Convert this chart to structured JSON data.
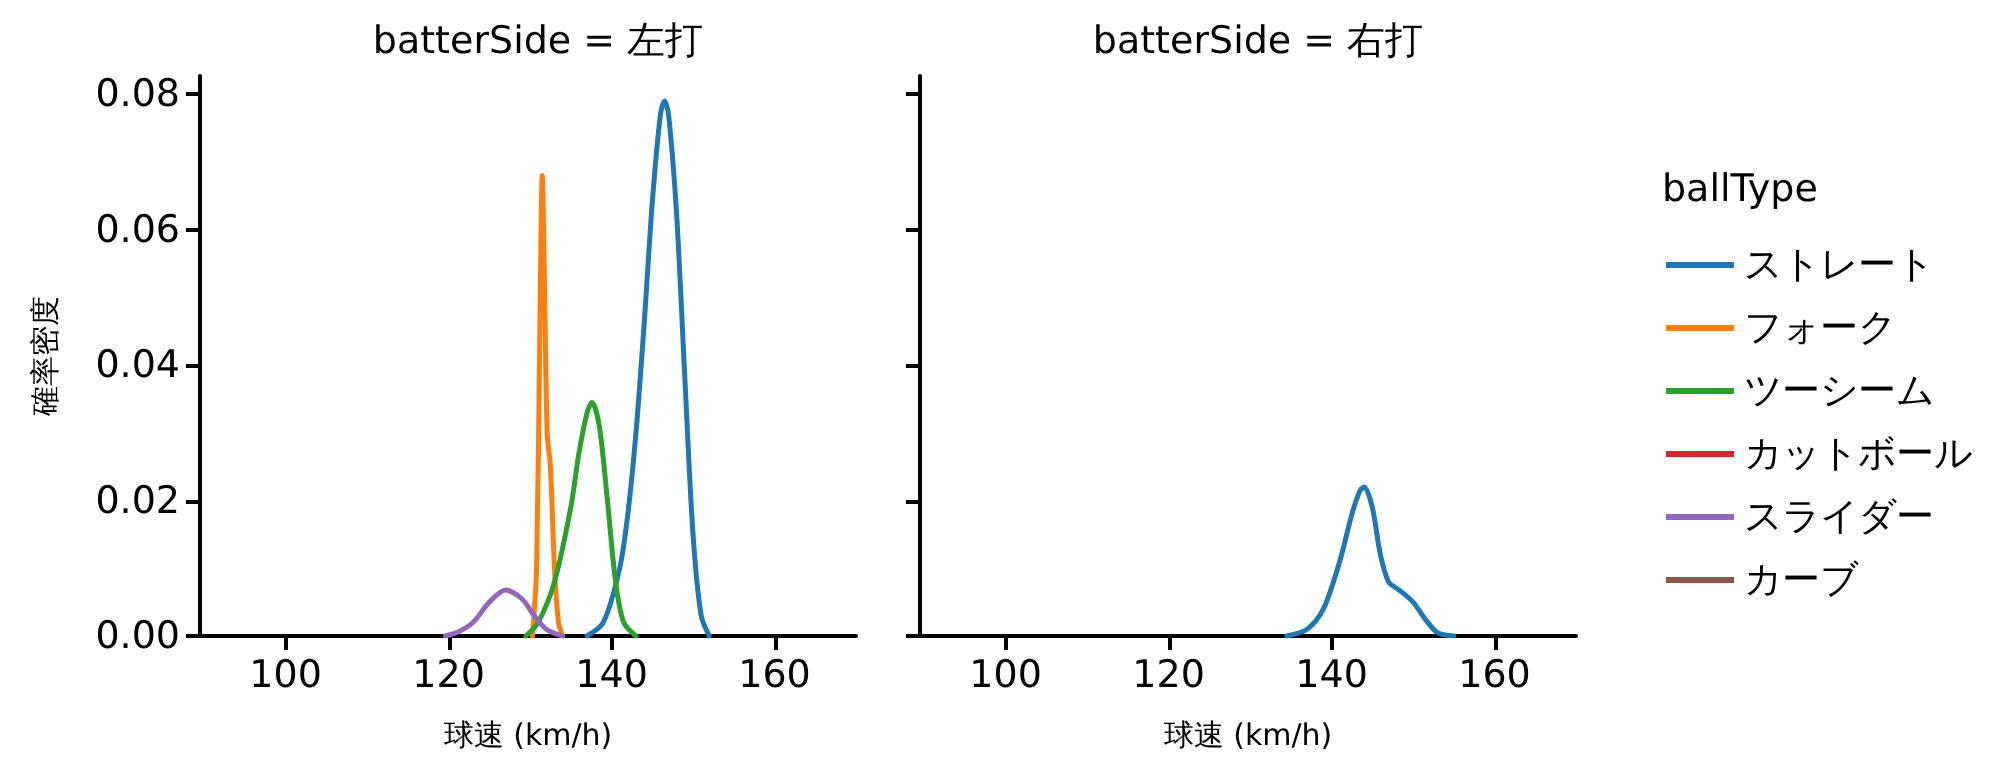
{
  "chart_data": [
    {
      "type": "line",
      "title": "batterSide = 左打",
      "xlabel": "球速 (km/h)",
      "ylabel": "確率密度",
      "xlim": [
        89.5,
        170
      ],
      "xticks": [
        100,
        120,
        140,
        160
      ],
      "ylim": [
        0,
        0.0827
      ],
      "yticks": [
        {
          "value": 0,
          "label": "0.00"
        },
        {
          "value": 0.02,
          "label": "0.02"
        },
        {
          "value": 0.04,
          "label": "0.04"
        },
        {
          "value": 0.06,
          "label": "0.06"
        },
        {
          "value": 0.08,
          "label": "0.08"
        }
      ],
      "grid": false,
      "legend": false,
      "marker": "none",
      "line_style": "solid",
      "series": [
        {
          "color": "#1f77b4",
          "x": [
            137,
            139,
            141,
            142,
            143,
            144,
            145,
            146,
            146.5,
            147,
            148,
            149,
            150,
            151,
            152
          ],
          "values": [
            0,
            0.002,
            0.01,
            0.018,
            0.03,
            0.046,
            0.064,
            0.077,
            0.079,
            0.077,
            0.062,
            0.038,
            0.015,
            0.003,
            0
          ]
        },
        {
          "color": "#ff7f0e",
          "x": [
            130.3,
            130.8,
            131.2,
            131.5,
            131.8,
            132.1,
            132.5,
            133,
            133.5,
            134
          ],
          "values": [
            0,
            0.01,
            0.045,
            0.068,
            0.05,
            0.03,
            0.025,
            0.01,
            0.002,
            0
          ]
        },
        {
          "color": "#2ca02c",
          "x": [
            129.5,
            131,
            133,
            135,
            136,
            137,
            137.6,
            138.5,
            139.5,
            140.5,
            141.5,
            143
          ],
          "values": [
            0,
            0.002,
            0.008,
            0.019,
            0.027,
            0.033,
            0.0345,
            0.031,
            0.02,
            0.008,
            0.002,
            0
          ]
        },
        {
          "color": "#9467bd",
          "x": [
            119.6,
            121,
            123,
            125,
            127,
            129,
            130.5,
            132,
            134
          ],
          "values": [
            0,
            0.0005,
            0.002,
            0.005,
            0.0068,
            0.0055,
            0.003,
            0.001,
            0
          ]
        }
      ]
    },
    {
      "type": "line",
      "title": "batterSide = 右打",
      "xlabel": "球速 (km/h)",
      "legend_title": "ballType",
      "xlim": [
        89.5,
        170
      ],
      "xticks": [
        100,
        120,
        140,
        160
      ],
      "ylim": [
        0,
        0.0827
      ],
      "yticks": [
        0,
        0.02,
        0.04,
        0.06,
        0.08
      ],
      "tick_labels": "x",
      "grid": false,
      "legend": "right",
      "marker": "none",
      "line_style": "solid",
      "series": [
        {
          "name": "ストレート",
          "color": "#1f77b4",
          "x": [
            134.5,
            137,
            139,
            141,
            142.5,
            143.5,
            144,
            145,
            146,
            147,
            148.3,
            150,
            151.5,
            153,
            155
          ],
          "values": [
            0,
            0.001,
            0.004,
            0.011,
            0.018,
            0.0215,
            0.022,
            0.019,
            0.012,
            0.008,
            0.0068,
            0.005,
            0.0025,
            0.0005,
            0
          ]
        },
        {
          "name": "フォーク",
          "color": "#ff7f0e"
        },
        {
          "name": "ツーシーム",
          "color": "#2ca02c"
        },
        {
          "name": "カットボール",
          "color": "#d62728"
        },
        {
          "name": "スライダー",
          "color": "#9467bd"
        },
        {
          "name": "カーブ",
          "color": "#8c564b"
        }
      ]
    }
  ]
}
